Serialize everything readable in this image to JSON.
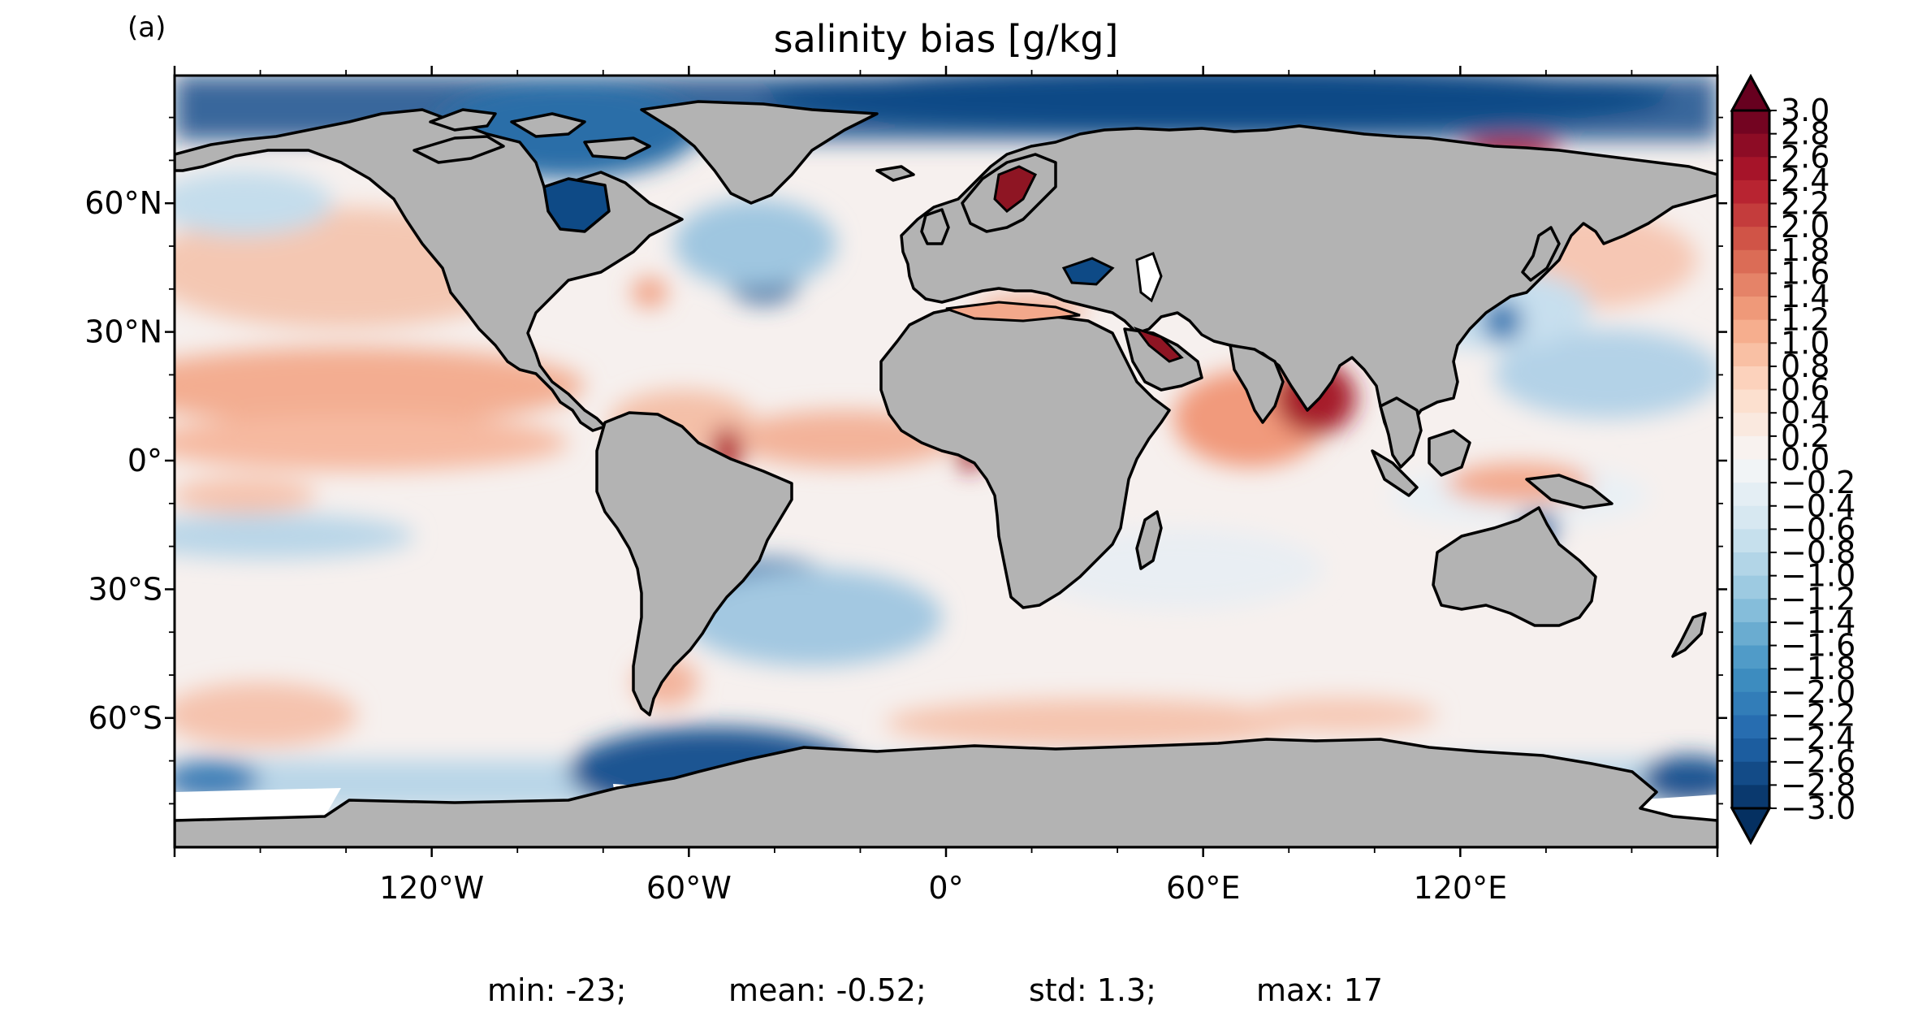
{
  "panel_label": "(a)",
  "title": "salinity bias [g/kg]",
  "lat_ticks": [
    "60°N",
    "30°N",
    "0°",
    "30°S",
    "60°S"
  ],
  "lon_ticks": [
    "120°W",
    "60°W",
    "0°",
    "60°E",
    "120°E"
  ],
  "colorbar": {
    "labels": [
      "3.0",
      "2.8",
      "2.6",
      "2.4",
      "2.2",
      "2.0",
      "1.8",
      "1.6",
      "1.4",
      "1.2",
      "1.0",
      "0.8",
      "0.6",
      "0.4",
      "0.2",
      "0.0",
      "−0.2",
      "−0.4",
      "−0.6",
      "−0.8",
      "−1.0",
      "−1.2",
      "−1.4",
      "−1.6",
      "−1.8",
      "−2.0",
      "−2.2",
      "−2.4",
      "−2.6",
      "−2.8",
      "−3.0"
    ],
    "min": -3.0,
    "max": 3.0,
    "extend": "both",
    "colormap": "red-white-blue"
  },
  "stats": {
    "min": "min: -23;",
    "mean": "mean: -0.52;",
    "std": "std: 1.3;",
    "max": "max: 17"
  },
  "colors": {
    "land": "#b3b3b3",
    "ice": "#ffffff",
    "strong_positive": "#8e1523",
    "positive": "#f3a98c",
    "neutral": "#f6f0ee",
    "negative": "#b9d6e8",
    "strong_negative": "#0e4a86"
  }
}
